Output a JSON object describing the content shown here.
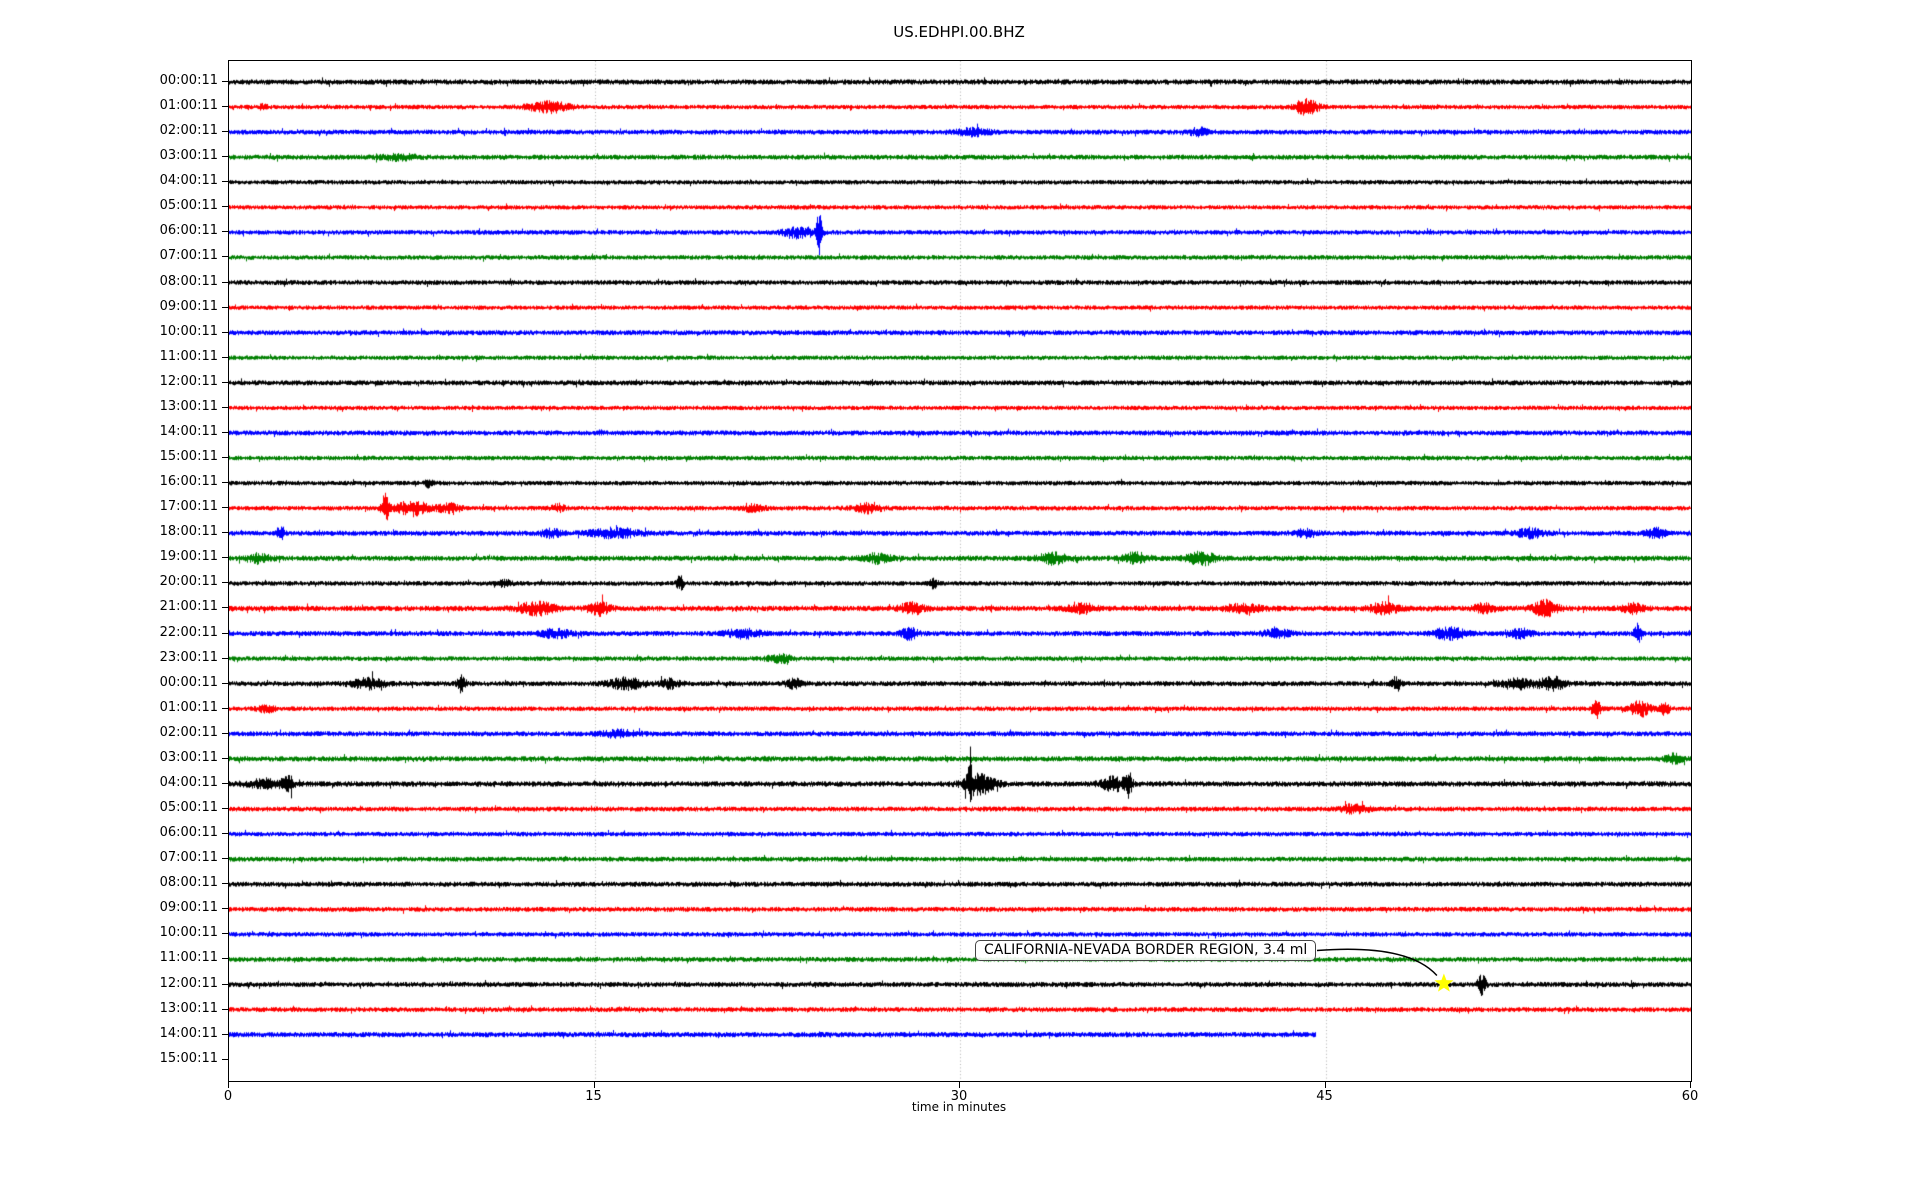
{
  "chart_data": {
    "type": "line",
    "subtype": "helicorder-seismogram",
    "title": "US.EDHPI.00.BHZ",
    "xlabel": "time in minutes",
    "xlim": [
      0,
      60
    ],
    "x_ticks": [
      0,
      15,
      30,
      45,
      60
    ],
    "grid": {
      "vertical_dotted_at": [
        15,
        30,
        45
      ],
      "color": "#b0b0b0"
    },
    "minutes_per_row": 60,
    "color_cycle": [
      "#000000",
      "#ff0000",
      "#0000ff",
      "#008000"
    ],
    "events_format": "[minute, amplitude_px, width_min]",
    "rows": [
      {
        "label": "00:00:11",
        "color": "#000000",
        "base": 2.7,
        "events": []
      },
      {
        "label": "01:00:11",
        "color": "#ff0000",
        "base": 2.3,
        "events": [
          [
            1.4,
            3,
            0.1
          ],
          [
            13.1,
            5,
            0.6
          ],
          [
            44.2,
            7,
            0.35
          ]
        ]
      },
      {
        "label": "02:00:11",
        "color": "#0000ff",
        "base": 2.5,
        "events": [
          [
            30.5,
            3,
            0.5
          ],
          [
            39.8,
            3.5,
            0.3
          ]
        ]
      },
      {
        "label": "03:00:11",
        "color": "#008000",
        "base": 2.6,
        "events": [
          [
            7.0,
            2.5,
            0.5
          ]
        ]
      },
      {
        "label": "04:00:11",
        "color": "#000000",
        "base": 2.3,
        "events": []
      },
      {
        "label": "05:00:11",
        "color": "#ff0000",
        "base": 2.3,
        "events": []
      },
      {
        "label": "06:00:11",
        "color": "#0000ff",
        "base": 2.4,
        "events": [
          [
            23.4,
            5,
            0.45
          ],
          [
            24.2,
            20,
            0.09
          ]
        ]
      },
      {
        "label": "07:00:11",
        "color": "#008000",
        "base": 2.4,
        "events": []
      },
      {
        "label": "08:00:11",
        "color": "#000000",
        "base": 2.5,
        "events": []
      },
      {
        "label": "09:00:11",
        "color": "#ff0000",
        "base": 2.3,
        "events": []
      },
      {
        "label": "10:00:11",
        "color": "#0000ff",
        "base": 2.6,
        "events": []
      },
      {
        "label": "11:00:11",
        "color": "#008000",
        "base": 2.3,
        "events": []
      },
      {
        "label": "12:00:11",
        "color": "#000000",
        "base": 2.6,
        "events": []
      },
      {
        "label": "13:00:11",
        "color": "#ff0000",
        "base": 2.3,
        "events": []
      },
      {
        "label": "14:00:11",
        "color": "#0000ff",
        "base": 2.6,
        "events": []
      },
      {
        "label": "15:00:11",
        "color": "#008000",
        "base": 2.4,
        "events": []
      },
      {
        "label": "16:00:11",
        "color": "#000000",
        "base": 2.4,
        "events": [
          [
            8.2,
            4,
            0.1
          ]
        ]
      },
      {
        "label": "17:00:11",
        "color": "#ff0000",
        "base": 2.4,
        "events": [
          [
            6.4,
            13,
            0.12
          ],
          [
            7.5,
            7,
            0.45
          ],
          [
            9.0,
            4,
            0.35
          ],
          [
            13.5,
            3,
            0.2
          ],
          [
            21.5,
            3,
            0.3
          ],
          [
            26.2,
            4,
            0.4
          ]
        ]
      },
      {
        "label": "18:00:11",
        "color": "#0000ff",
        "base": 2.6,
        "events": [
          [
            2.1,
            8,
            0.1
          ],
          [
            13.2,
            3.5,
            0.3
          ],
          [
            15.8,
            4.5,
            0.7
          ],
          [
            44.2,
            3.5,
            0.3
          ],
          [
            53.4,
            4,
            0.4
          ],
          [
            58.5,
            4.5,
            0.3
          ]
        ]
      },
      {
        "label": "19:00:11",
        "color": "#008000",
        "base": 2.7,
        "events": [
          [
            1.2,
            4,
            0.35
          ],
          [
            26.6,
            4,
            0.4
          ],
          [
            33.8,
            5,
            0.45
          ],
          [
            37.2,
            5,
            0.35
          ],
          [
            39.9,
            6,
            0.4
          ]
        ]
      },
      {
        "label": "20:00:11",
        "color": "#000000",
        "base": 2.4,
        "events": [
          [
            11.3,
            3,
            0.2
          ],
          [
            18.5,
            7,
            0.1
          ],
          [
            28.9,
            6,
            0.1
          ]
        ]
      },
      {
        "label": "21:00:11",
        "color": "#ff0000",
        "base": 2.8,
        "events": [
          [
            12.6,
            6,
            0.5
          ],
          [
            15.2,
            6,
            0.3
          ],
          [
            28.0,
            5,
            0.35
          ],
          [
            35.0,
            4,
            0.4
          ],
          [
            41.6,
            4,
            0.5
          ],
          [
            47.4,
            5,
            0.4
          ],
          [
            51.5,
            4,
            0.3
          ],
          [
            54.0,
            8,
            0.35
          ],
          [
            57.6,
            4,
            0.3
          ]
        ]
      },
      {
        "label": "22:00:11",
        "color": "#0000ff",
        "base": 2.6,
        "events": [
          [
            13.4,
            4,
            0.4
          ],
          [
            21.1,
            4,
            0.5
          ],
          [
            27.9,
            5,
            0.25
          ],
          [
            43.0,
            3.5,
            0.4
          ],
          [
            50.1,
            5,
            0.5
          ],
          [
            53.0,
            4,
            0.3
          ],
          [
            57.8,
            11,
            0.1
          ]
        ]
      },
      {
        "label": "23:00:11",
        "color": "#008000",
        "base": 2.4,
        "events": [
          [
            22.6,
            4,
            0.35
          ]
        ]
      },
      {
        "label": "00:00:11",
        "color": "#000000",
        "base": 2.6,
        "events": [
          [
            5.7,
            5,
            0.5
          ],
          [
            9.5,
            8,
            0.1
          ],
          [
            16.3,
            5,
            0.5
          ],
          [
            18.1,
            4,
            0.3
          ],
          [
            23.2,
            4,
            0.25
          ],
          [
            47.9,
            7,
            0.12
          ],
          [
            52.9,
            5,
            0.5
          ],
          [
            54.3,
            6,
            0.35
          ]
        ]
      },
      {
        "label": "01:00:11",
        "color": "#ff0000",
        "base": 2.4,
        "events": [
          [
            1.5,
            3,
            0.25
          ],
          [
            56.1,
            9,
            0.12
          ],
          [
            57.9,
            7,
            0.3
          ],
          [
            58.9,
            5,
            0.15
          ]
        ]
      },
      {
        "label": "02:00:11",
        "color": "#0000ff",
        "base": 2.6,
        "events": [
          [
            16.0,
            3,
            0.5
          ]
        ]
      },
      {
        "label": "03:00:11",
        "color": "#008000",
        "base": 2.7,
        "events": [
          [
            59.3,
            4,
            0.25
          ]
        ]
      },
      {
        "label": "04:00:11",
        "color": "#000000",
        "base": 2.8,
        "events": [
          [
            1.6,
            4,
            0.6
          ],
          [
            2.4,
            11,
            0.12
          ],
          [
            30.4,
            13,
            0.12
          ],
          [
            30.8,
            9,
            0.45
          ],
          [
            36.3,
            6,
            0.4
          ],
          [
            36.9,
            11,
            0.1
          ]
        ]
      },
      {
        "label": "05:00:11",
        "color": "#ff0000",
        "base": 2.5,
        "events": [
          [
            46.2,
            4,
            0.4
          ]
        ]
      },
      {
        "label": "06:00:11",
        "color": "#0000ff",
        "base": 2.4,
        "events": []
      },
      {
        "label": "07:00:11",
        "color": "#008000",
        "base": 2.5,
        "events": []
      },
      {
        "label": "08:00:11",
        "color": "#000000",
        "base": 2.6,
        "events": []
      },
      {
        "label": "09:00:11",
        "color": "#ff0000",
        "base": 2.5,
        "events": []
      },
      {
        "label": "10:00:11",
        "color": "#0000ff",
        "base": 2.4,
        "events": []
      },
      {
        "label": "11:00:11",
        "color": "#008000",
        "base": 2.5,
        "events": []
      },
      {
        "label": "12:00:11",
        "color": "#000000",
        "base": 2.6,
        "events": [
          [
            51.4,
            9,
            0.12
          ]
        ]
      },
      {
        "label": "13:00:11",
        "color": "#ff0000",
        "base": 2.5,
        "events": []
      },
      {
        "label": "14:00:11",
        "color": "#0000ff",
        "base": 2.7,
        "end_min": 44.6,
        "events": []
      },
      {
        "label": "15:00:11",
        "color": "#008000",
        "base": 0,
        "no_trace": true,
        "events": []
      }
    ],
    "annotation": {
      "text": "CALIFORNIA-NEVADA BORDER REGION, 3.4 ml",
      "marker_row_index": 36,
      "marker_minute": 49.9,
      "marker_symbol": "star",
      "marker_color": "#ffff00"
    }
  }
}
